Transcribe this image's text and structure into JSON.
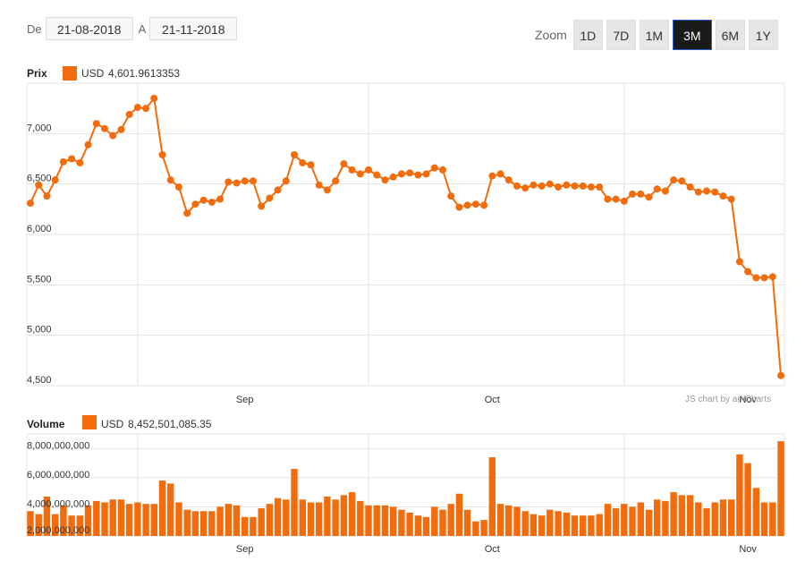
{
  "date_range": {
    "from_label": "De",
    "from": "21-08-2018",
    "to_label": "A",
    "to": "21-11-2018"
  },
  "zoom": {
    "label": "Zoom",
    "buttons": [
      "1D",
      "7D",
      "1M",
      "3M",
      "6M",
      "1Y"
    ],
    "active": "3M"
  },
  "credit": "JS chart by amCharts",
  "colors": {
    "series": "#f26c0c",
    "grid": "#e3e3e3"
  },
  "chart_data": [
    {
      "type": "line",
      "title": "Prix",
      "legend": {
        "name": "USD",
        "value": "4,601.9613353"
      },
      "ylim": [
        4500,
        7500
      ],
      "yticks": [
        4500,
        5000,
        5500,
        6000,
        6500,
        7000
      ],
      "ytick_labels": [
        "4,500",
        "5,000",
        "5,500",
        "6,000",
        "6,500",
        "7,000"
      ],
      "xticks": [
        {
          "label": "Sep",
          "index": 26
        },
        {
          "label": "Oct",
          "index": 56
        },
        {
          "label": "Nov",
          "index": 87
        }
      ],
      "values": [
        6310,
        6490,
        6380,
        6540,
        6720,
        6750,
        6710,
        6890,
        7100,
        7050,
        6980,
        7040,
        7190,
        7260,
        7250,
        7350,
        6790,
        6540,
        6470,
        6210,
        6300,
        6340,
        6320,
        6350,
        6520,
        6510,
        6530,
        6530,
        6280,
        6360,
        6440,
        6530,
        6790,
        6710,
        6690,
        6490,
        6440,
        6530,
        6700,
        6640,
        6600,
        6640,
        6590,
        6540,
        6570,
        6600,
        6610,
        6590,
        6600,
        6660,
        6640,
        6380,
        6270,
        6290,
        6300,
        6290,
        6580,
        6600,
        6540,
        6480,
        6460,
        6490,
        6480,
        6500,
        6470,
        6490,
        6480,
        6480,
        6470,
        6470,
        6350,
        6350,
        6330,
        6400,
        6400,
        6370,
        6450,
        6430,
        6540,
        6530,
        6470,
        6420,
        6430,
        6420,
        6380,
        6350,
        5730,
        5630,
        5570,
        5570,
        5580,
        4600
      ]
    },
    {
      "type": "bar",
      "title": "Volume",
      "legend": {
        "name": "USD",
        "value": "8,452,501,085.35"
      },
      "ylim": [
        2000000000,
        9000000000
      ],
      "yticks": [
        2000000000,
        4000000000,
        6000000000,
        8000000000
      ],
      "ytick_labels": [
        "2,000,000,000",
        "4,000,000,000",
        "6,000,000,000",
        "8,000,000,000"
      ],
      "xticks": [
        {
          "label": "Sep",
          "index": 26
        },
        {
          "label": "Oct",
          "index": 56
        },
        {
          "label": "Nov",
          "index": 87
        }
      ],
      "values": [
        3700000000,
        3500000000,
        4700000000,
        3500000000,
        4100000000,
        3400000000,
        3400000000,
        4100000000,
        4400000000,
        4300000000,
        4500000000,
        4500000000,
        4200000000,
        4300000000,
        4200000000,
        4200000000,
        5800000000,
        5600000000,
        4300000000,
        3800000000,
        3700000000,
        3700000000,
        3700000000,
        4000000000,
        4200000000,
        4100000000,
        3300000000,
        3300000000,
        3900000000,
        4200000000,
        4600000000,
        4500000000,
        6600000000,
        4500000000,
        4300000000,
        4300000000,
        4700000000,
        4500000000,
        4800000000,
        5000000000,
        4400000000,
        4100000000,
        4100000000,
        4100000000,
        4000000000,
        3800000000,
        3600000000,
        3400000000,
        3300000000,
        4000000000,
        3800000000,
        4200000000,
        4900000000,
        3800000000,
        3000000000,
        3100000000,
        7400000000,
        4200000000,
        4100000000,
        4000000000,
        3700000000,
        3500000000,
        3400000000,
        3800000000,
        3700000000,
        3600000000,
        3400000000,
        3400000000,
        3400000000,
        3500000000,
        4200000000,
        3900000000,
        4200000000,
        4000000000,
        4300000000,
        3800000000,
        4500000000,
        4400000000,
        5000000000,
        4800000000,
        4800000000,
        4300000000,
        3900000000,
        4300000000,
        4500000000,
        4500000000,
        7600000000,
        7000000000,
        5300000000,
        4300000000,
        4300000000,
        8500000000
      ]
    }
  ]
}
